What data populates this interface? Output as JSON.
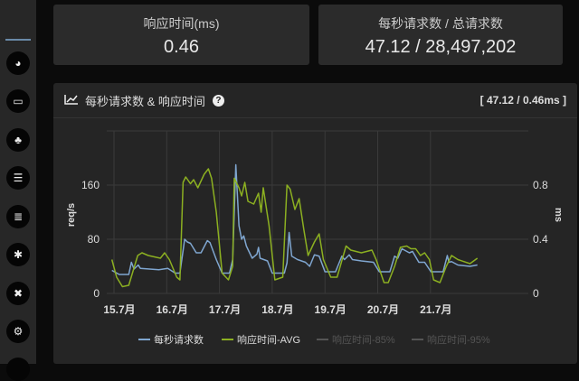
{
  "sidebar": {
    "icons": [
      "dashboard-icon",
      "laptop-icon",
      "sitemap-icon",
      "list-icon",
      "database-icon",
      "bug-icon",
      "close-circle-icon",
      "cogs-icon"
    ]
  },
  "cards": [
    {
      "label": "响应时间(ms)",
      "value": "0.46"
    },
    {
      "label": "每秒请求数 / 总请求数",
      "value": "47.12 / 28,497,202"
    }
  ],
  "panel": {
    "title": "每秒请求数 & 响应时间",
    "help": "?",
    "summary": "[ 47.12 / 0.46ms ]"
  },
  "chart_data": {
    "type": "line",
    "ylabel": "req/s",
    "y2label": "ms",
    "ylim": [
      0,
      240
    ],
    "y2lim": [
      0,
      1.2
    ],
    "yticks": [
      "0",
      "80",
      "160"
    ],
    "y2ticks": [
      "0",
      "0.4",
      "0.8"
    ],
    "xticks": [
      "15.7月",
      "16.7月",
      "17.7月",
      "18.7月",
      "19.7月",
      "20.7月",
      "21.7月"
    ],
    "grid": true,
    "legend": "bottom",
    "colors": {
      "rate": "#7fa6d0",
      "avg": "#8cb021",
      "p85": "#555555",
      "p95": "#555555"
    },
    "series": [
      {
        "name": "每秒请求数",
        "axis": "left",
        "x": [
          14.96,
          15.1,
          15.28,
          15.33,
          15.38,
          15.46,
          15.5,
          15.85,
          16.02,
          16.16,
          16.25,
          16.34,
          16.39,
          16.45,
          16.56,
          16.65,
          16.77,
          16.82,
          16.94,
          17.05,
          17.19,
          17.25,
          17.31,
          17.37,
          17.42,
          17.46,
          17.51,
          17.62,
          17.71,
          17.74,
          17.77,
          17.91,
          18.0,
          18.23,
          18.28,
          18.32,
          18.37,
          18.48,
          18.63,
          18.71,
          18.8,
          18.89,
          19.0,
          19.2,
          19.32,
          19.37,
          19.46,
          19.52,
          19.69,
          19.92,
          20.03,
          20.23,
          20.32,
          20.38,
          20.46,
          20.6,
          20.66,
          20.78,
          20.89,
          21.01,
          21.24,
          21.32,
          21.35,
          21.4,
          21.52,
          21.75,
          21.89
        ],
        "y": [
          34,
          28,
          28,
          46,
          36,
          42,
          37,
          35,
          37,
          30,
          30,
          80,
          76,
          74,
          60,
          60,
          78,
          75,
          50,
          30,
          30,
          50,
          190,
          100,
          80,
          85,
          70,
          52,
          58,
          68,
          52,
          48,
          30,
          30,
          45,
          90,
          55,
          50,
          46,
          40,
          57,
          55,
          32,
          32,
          55,
          50,
          57,
          50,
          48,
          46,
          32,
          32,
          55,
          52,
          66,
          60,
          62,
          46,
          46,
          32,
          32,
          56,
          46,
          47,
          42,
          40,
          42
        ]
      },
      {
        "name": "响应时间-AVG",
        "axis": "right",
        "x": [
          14.96,
          15.05,
          15.16,
          15.28,
          15.45,
          15.53,
          15.65,
          15.88,
          15.96,
          16.05,
          16.19,
          16.25,
          16.31,
          16.36,
          16.45,
          16.51,
          16.59,
          16.71,
          16.79,
          16.85,
          16.94,
          17.05,
          17.17,
          17.25,
          17.28,
          17.37,
          17.42,
          17.48,
          17.54,
          17.65,
          17.74,
          17.79,
          17.83,
          17.94,
          18.05,
          18.2,
          18.28,
          18.34,
          18.43,
          18.51,
          18.6,
          18.68,
          18.8,
          18.89,
          18.97,
          19.11,
          19.23,
          19.4,
          19.49,
          19.69,
          19.89,
          19.97,
          20.12,
          20.2,
          20.32,
          20.43,
          20.55,
          20.63,
          20.72,
          20.81,
          20.89,
          20.98,
          21.06,
          21.18,
          21.3,
          21.4,
          21.52,
          21.75,
          21.89
        ],
        "y": [
          0.25,
          0.12,
          0.05,
          0.06,
          0.28,
          0.3,
          0.28,
          0.26,
          0.3,
          0.25,
          0.12,
          0.1,
          0.82,
          0.86,
          0.81,
          0.84,
          0.78,
          0.88,
          0.92,
          0.85,
          0.6,
          0.15,
          0.1,
          0.2,
          0.85,
          0.78,
          0.72,
          0.82,
          0.68,
          0.66,
          0.74,
          0.6,
          0.78,
          0.5,
          0.1,
          0.12,
          0.8,
          0.77,
          0.62,
          0.7,
          0.47,
          0.28,
          0.38,
          0.44,
          0.25,
          0.12,
          0.12,
          0.35,
          0.32,
          0.3,
          0.32,
          0.25,
          0.08,
          0.08,
          0.2,
          0.34,
          0.35,
          0.33,
          0.33,
          0.28,
          0.3,
          0.25,
          0.1,
          0.08,
          0.2,
          0.28,
          0.25,
          0.22,
          0.26
        ]
      },
      {
        "name": "响应时间-85%",
        "axis": "right",
        "hidden": true
      },
      {
        "name": "响应时间-95%",
        "axis": "right",
        "hidden": true
      }
    ]
  }
}
